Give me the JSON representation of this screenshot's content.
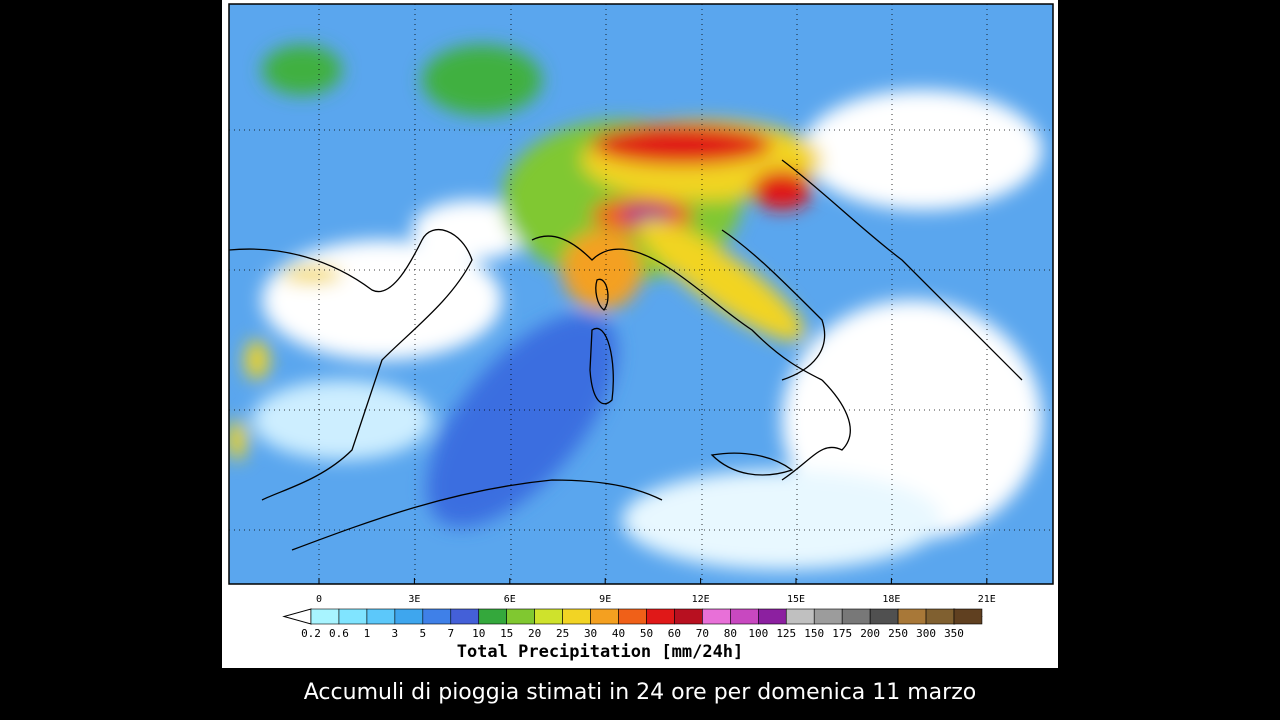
{
  "map": {
    "longitude_labels": [
      "0",
      "3E",
      "6E",
      "9E",
      "12E",
      "15E",
      "18E",
      "21E"
    ],
    "colorbar": {
      "labels": [
        "0.2",
        "0.6",
        "1",
        "3",
        "5",
        "7",
        "10",
        "15",
        "20",
        "25",
        "30",
        "40",
        "50",
        "60",
        "70",
        "80",
        "100",
        "125",
        "150",
        "175",
        "200",
        "250",
        "300",
        "350"
      ],
      "colors": [
        "#a8f4ff",
        "#80e4ff",
        "#5cc8fa",
        "#3ea6ee",
        "#3f80e8",
        "#4460d8",
        "#34a83c",
        "#80c830",
        "#cfe22c",
        "#f2d424",
        "#f4a020",
        "#f06018",
        "#e01818",
        "#b81020",
        "#e870d8",
        "#c848c0",
        "#8c20a0",
        "#c0c0c0",
        "#9c9c9c",
        "#787878",
        "#505050",
        "#a87838",
        "#806030",
        "#604020"
      ],
      "title": "Total Precipitation [mm/24h]"
    },
    "caption": "Accumuli di pioggia stimati in 24 ore per domenica 11 marzo"
  }
}
